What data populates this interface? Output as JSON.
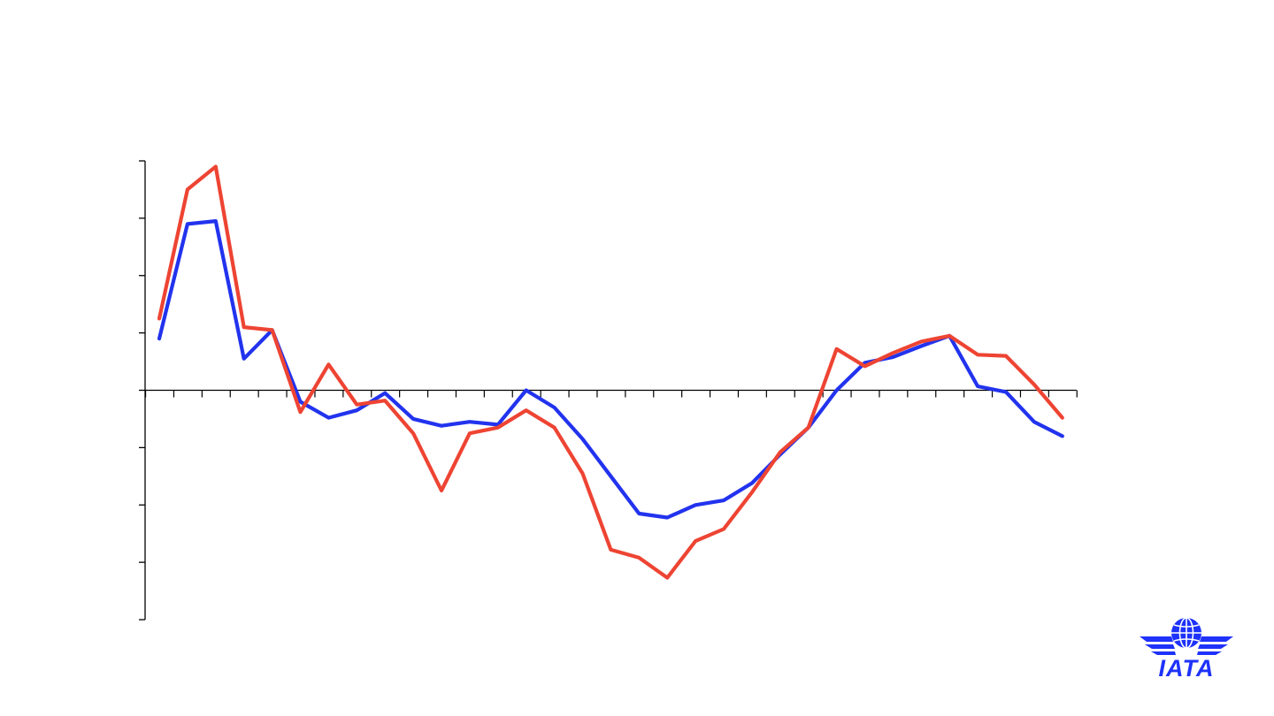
{
  "chart_data": {
    "type": "line",
    "title": "",
    "xlabel": "",
    "ylabel": "",
    "grid": false,
    "legend": "none",
    "x": [
      1,
      2,
      3,
      4,
      5,
      6,
      7,
      8,
      9,
      10,
      11,
      12,
      13,
      14,
      15,
      16,
      17,
      18,
      19,
      20,
      21,
      22,
      23,
      24,
      25,
      26,
      27,
      28,
      29,
      30,
      31,
      32,
      33
    ],
    "ylim": [
      -4,
      4
    ],
    "y_major_ticks": [
      -4,
      -3,
      -2,
      -1,
      0,
      1,
      2,
      3,
      4
    ],
    "series": [
      {
        "color": "#2233ee",
        "values": [
          0.9,
          2.9,
          2.95,
          0.55,
          1.05,
          -0.2,
          -0.48,
          -0.35,
          -0.05,
          -0.5,
          -0.62,
          -0.55,
          -0.6,
          0,
          -0.3,
          -0.85,
          -1.5,
          -2.15,
          -2.22,
          -2.0,
          -1.92,
          -1.62,
          -1.12,
          -0.65,
          0,
          0.48,
          0.58,
          0.77,
          0.95,
          0.07,
          -0.03,
          -0.55,
          -0.8
        ]
      },
      {
        "color": "#ee4433",
        "values": [
          1.25,
          3.5,
          3.9,
          1.1,
          1.05,
          -0.38,
          0.45,
          -0.25,
          -0.18,
          -0.75,
          -1.75,
          -0.75,
          -0.65,
          -0.35,
          -0.65,
          -1.45,
          -2.78,
          -2.92,
          -3.27,
          -2.63,
          -2.42,
          -1.78,
          -1.08,
          -0.65,
          0.72,
          0.42,
          0.65,
          0.85,
          0.95,
          0.62,
          0.6,
          0.1,
          -0.48
        ]
      }
    ]
  },
  "logo": {
    "text": "IATA",
    "color": "#1e32fa",
    "icon": "globe-wings-icon"
  }
}
